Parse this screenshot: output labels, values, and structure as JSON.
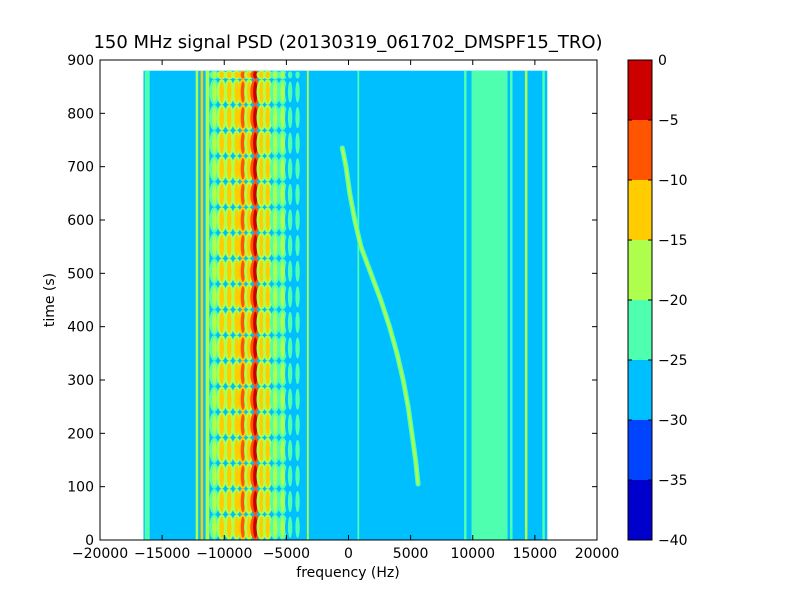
{
  "chart_data": {
    "type": "heatmap",
    "title": "150 MHz signal PSD (20130319_061702_DMSPF15_TRO)",
    "xlabel": "frequency (Hz)",
    "ylabel": "time (s)",
    "xlim": [
      -20000,
      20000
    ],
    "ylim": [
      0,
      900
    ],
    "x_ticks": [
      -20000,
      -15000,
      -10000,
      -5000,
      0,
      5000,
      10000,
      15000,
      20000
    ],
    "x_tick_labels": [
      "−20000",
      "−15000",
      "−10000",
      "−5000",
      "0",
      "5000",
      "10000",
      "15000",
      "20000"
    ],
    "y_ticks": [
      0,
      100,
      200,
      300,
      400,
      500,
      600,
      700,
      800,
      900
    ],
    "y_tick_labels": [
      "0",
      "100",
      "200",
      "300",
      "400",
      "500",
      "600",
      "700",
      "800",
      "900"
    ],
    "data_extent": {
      "x": [
        -16500,
        16000
      ],
      "t": [
        0,
        880
      ]
    },
    "background_level": -27.5,
    "colorbar": {
      "levels": [
        -40,
        -35,
        -30,
        -25,
        -20,
        -15,
        -10,
        -5,
        0
      ],
      "tick_labels": [
        "−40",
        "−35",
        "−30",
        "−25",
        "−20",
        "−15",
        "−10",
        "−5",
        "0"
      ],
      "colors": [
        "#0000cd",
        "#0044ff",
        "#00bfff",
        "#4dffae",
        "#aeff4d",
        "#ffcc00",
        "#ff5500",
        "#cd0000"
      ]
    },
    "continuous_bands": [
      {
        "x": [
          -16400,
          -16000
        ],
        "level": -22.5
      },
      {
        "x": [
          -12300,
          -12100
        ],
        "level": -17.5
      },
      {
        "x": [
          -11900,
          -11700
        ],
        "level": -12.5
      },
      {
        "x": [
          -11500,
          -11200
        ],
        "level": -17.5
      },
      {
        "x": [
          -3350,
          -3200
        ],
        "level": -17.5
      },
      {
        "x": [
          720,
          860
        ],
        "level": -22.5
      },
      {
        "x": [
          9300,
          9500
        ],
        "level": -22.5
      },
      {
        "x": [
          9900,
          12800
        ],
        "level": -22.5
      },
      {
        "x": [
          13000,
          13200
        ],
        "level": -22.5
      },
      {
        "x": [
          14200,
          14400
        ],
        "level": -17.5
      },
      {
        "x": [
          15600,
          15800
        ],
        "level": -22.5
      }
    ],
    "modulated_columns": [
      {
        "x": -10800,
        "level_a": -17.5,
        "level_b": -22.5
      },
      {
        "x": -10200,
        "level_a": -12.5,
        "level_b": -17.5
      },
      {
        "x": -9600,
        "level_a": -12.5,
        "level_b": -17.5
      },
      {
        "x": -9000,
        "level_a": -12.5,
        "level_b": -17.5
      },
      {
        "x": -8500,
        "level_a": -7.5,
        "level_b": -12.5
      },
      {
        "x": -8000,
        "level_a": -12.5,
        "level_b": -17.5
      },
      {
        "x": -7500,
        "level_a": -2.5,
        "level_b": -7.5
      },
      {
        "x": -7000,
        "level_a": -12.5,
        "level_b": -17.5
      },
      {
        "x": -6500,
        "level_a": -12.5,
        "level_b": -17.5
      },
      {
        "x": -5900,
        "level_a": -17.5,
        "level_b": -22.5
      },
      {
        "x": -5300,
        "level_a": -17.5,
        "level_b": -22.5
      },
      {
        "x": -4700,
        "level_a": -22.5,
        "level_b": -27.5
      },
      {
        "x": -4100,
        "level_a": -22.5,
        "level_b": -27.5
      }
    ],
    "modulation_period_s": 48,
    "doppler_trace": {
      "level": -17.5,
      "points": [
        {
          "t": 735,
          "f": -500
        },
        {
          "t": 700,
          "f": -200
        },
        {
          "t": 650,
          "f": 100
        },
        {
          "t": 600,
          "f": 500
        },
        {
          "t": 550,
          "f": 1000
        },
        {
          "t": 500,
          "f": 1800
        },
        {
          "t": 450,
          "f": 2600
        },
        {
          "t": 400,
          "f": 3300
        },
        {
          "t": 350,
          "f": 3900
        },
        {
          "t": 300,
          "f": 4400
        },
        {
          "t": 250,
          "f": 4800
        },
        {
          "t": 200,
          "f": 5100
        },
        {
          "t": 150,
          "f": 5400
        },
        {
          "t": 105,
          "f": 5600
        }
      ]
    }
  }
}
